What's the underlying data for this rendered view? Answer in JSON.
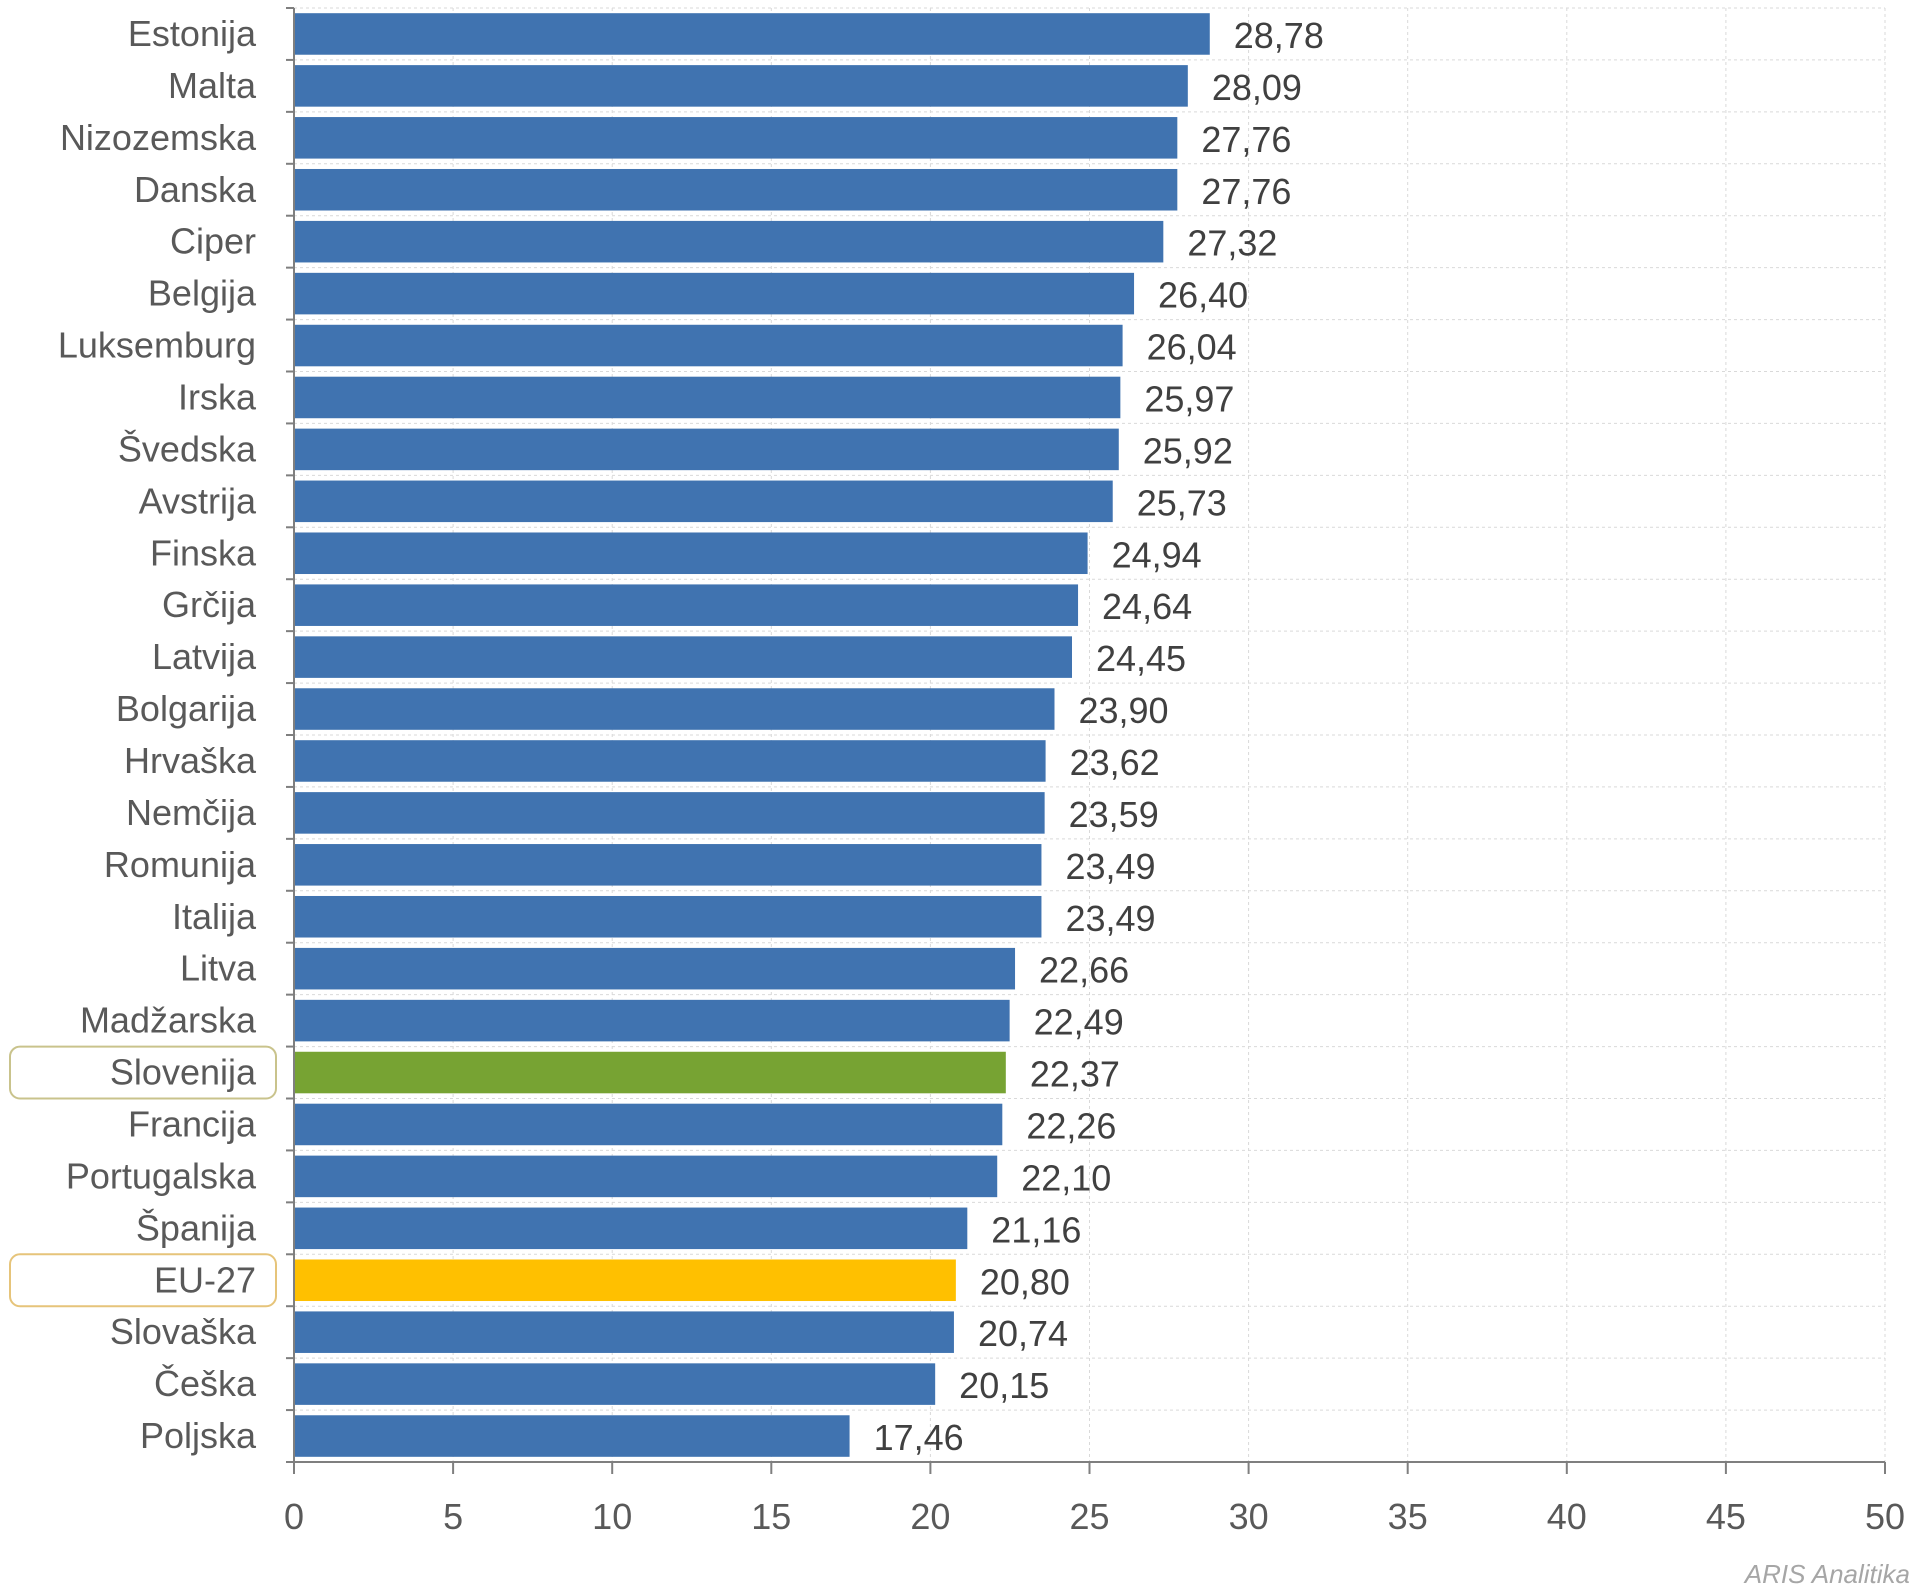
{
  "chart_data": {
    "type": "bar",
    "orientation": "horizontal",
    "title": "",
    "xlabel": "",
    "ylabel": "",
    "xlim": [
      0,
      50
    ],
    "ticks": [
      0,
      5,
      10,
      15,
      20,
      25,
      30,
      35,
      40,
      45,
      50
    ],
    "grid": true,
    "categories": [
      "Estonija",
      "Malta",
      "Nizozemska",
      "Danska",
      "Ciper",
      "Belgija",
      "Luksemburg",
      "Irska",
      "Švedska",
      "Avstrija",
      "Finska",
      "Grčija",
      "Latvija",
      "Bolgarija",
      "Hrvaška",
      "Nemčija",
      "Romunija",
      "Italija",
      "Litva",
      "Madžarska",
      "Slovenija",
      "Francija",
      "Portugalska",
      "Španija",
      "EU-27",
      "Slovaška",
      "Češka",
      "Poljska"
    ],
    "values": [
      28.78,
      28.09,
      27.76,
      27.76,
      27.32,
      26.4,
      26.04,
      25.97,
      25.92,
      25.73,
      24.94,
      24.64,
      24.45,
      23.9,
      23.62,
      23.59,
      23.49,
      23.49,
      22.66,
      22.49,
      22.37,
      22.26,
      22.1,
      21.16,
      20.8,
      20.74,
      20.15,
      17.46
    ],
    "value_labels": [
      "28,78",
      "28,09",
      "27,76",
      "27,76",
      "27,32",
      "26,40",
      "26,04",
      "25,97",
      "25,92",
      "25,73",
      "24,94",
      "24,64",
      "24,45",
      "23,90",
      "23,62",
      "23,59",
      "23,49",
      "23,49",
      "22,66",
      "22,49",
      "22,37",
      "22,26",
      "22,10",
      "21,16",
      "20,80",
      "20,74",
      "20,15",
      "17,46"
    ],
    "colors": {
      "default": "#4073b0",
      "highlight": {
        "Slovenija": "#77a333",
        "EU-27": "#ffc000"
      },
      "label_box": {
        "Slovenija": "#c9c38c",
        "EU-27": "#e6c47a"
      }
    }
  },
  "source_note": "ARIS Analitika"
}
